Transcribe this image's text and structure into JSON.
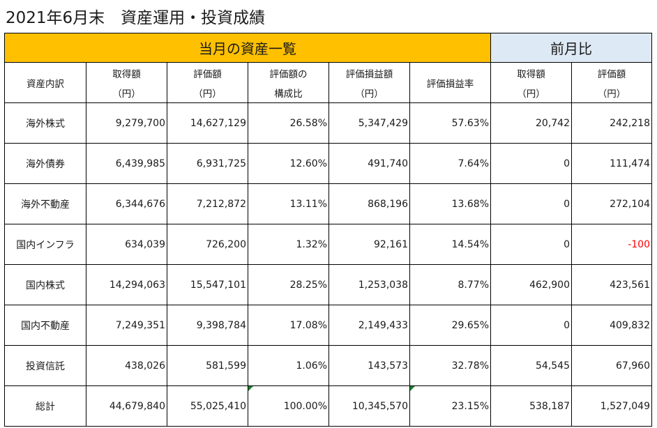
{
  "title": "2021年6月末　資産運用・投資成績",
  "bands": {
    "current": "当月の資産一覧",
    "previous": "前月比"
  },
  "headers": [
    {
      "line1": "資産内訳",
      "line2": ""
    },
    {
      "line1": "取得額",
      "line2": "（円）"
    },
    {
      "line1": "評価額",
      "line2": "（円）"
    },
    {
      "line1": "評価額の",
      "line2": "構成比"
    },
    {
      "line1": "評価損益額",
      "line2": "（円）"
    },
    {
      "line1": "評価損益率",
      "line2": ""
    },
    {
      "line1": "取得額",
      "line2": "（円）"
    },
    {
      "line1": "評価額",
      "line2": "（円）"
    }
  ],
  "rows": [
    {
      "name": "海外株式",
      "cost": "9,279,700",
      "value": "14,627,129",
      "ratio": "26.58%",
      "gain": "5,347,429",
      "gain_rate": "57.63%",
      "prev_cost": "20,742",
      "prev_value": "242,218"
    },
    {
      "name": "海外債券",
      "cost": "6,439,985",
      "value": "6,931,725",
      "ratio": "12.60%",
      "gain": "491,740",
      "gain_rate": "7.64%",
      "prev_cost": "0",
      "prev_value": "111,474"
    },
    {
      "name": "海外不動産",
      "cost": "6,344,676",
      "value": "7,212,872",
      "ratio": "13.11%",
      "gain": "868,196",
      "gain_rate": "13.68%",
      "prev_cost": "0",
      "prev_value": "272,104"
    },
    {
      "name": "国内インフラ",
      "cost": "634,039",
      "value": "726,200",
      "ratio": "1.32%",
      "gain": "92,161",
      "gain_rate": "14.54%",
      "prev_cost": "0",
      "prev_value": "-100"
    },
    {
      "name": "国内株式",
      "cost": "14,294,063",
      "value": "15,547,101",
      "ratio": "28.25%",
      "gain": "1,253,038",
      "gain_rate": "8.77%",
      "prev_cost": "462,900",
      "prev_value": "423,561"
    },
    {
      "name": "国内不動産",
      "cost": "7,249,351",
      "value": "9,398,784",
      "ratio": "17.08%",
      "gain": "2,149,433",
      "gain_rate": "29.65%",
      "prev_cost": "0",
      "prev_value": "409,832"
    },
    {
      "name": "投資信託",
      "cost": "438,026",
      "value": "581,599",
      "ratio": "1.06%",
      "gain": "143,573",
      "gain_rate": "32.78%",
      "prev_cost": "54,545",
      "prev_value": "67,960"
    },
    {
      "name": "総計",
      "cost": "44,679,840",
      "value": "55,025,410",
      "ratio": "100.00%",
      "gain": "10,345,570",
      "gain_rate": "23.15%",
      "prev_cost": "538,187",
      "prev_value": "1,527,049"
    }
  ],
  "colors": {
    "band_current": "#ffc000",
    "band_previous": "#dde9f5",
    "negative_text": "#ff0000",
    "error_indicator": "#1e7d2f"
  }
}
